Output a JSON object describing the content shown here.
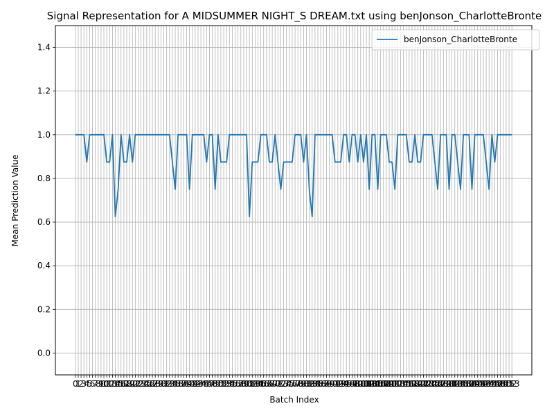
{
  "chart_data": {
    "type": "line",
    "title": "Signal Representation for A MIDSUMMER NIGHT_S DREAM.txt using benJonson_CharlotteBronte",
    "xlabel": "Batch Index",
    "ylabel": "Mean Prediction Value",
    "xlim": [
      -7,
      160
    ],
    "ylim": [
      -0.1,
      1.5
    ],
    "yticks": [
      0.0,
      0.2,
      0.4,
      0.6,
      0.8,
      1.0,
      1.2,
      1.4
    ],
    "ytick_labels": [
      "0.0",
      "0.2",
      "0.4",
      "0.6",
      "0.8",
      "1.0",
      "1.2",
      "1.4"
    ],
    "grid": true,
    "legend_position": "top-right",
    "line_color": "#1f77b4",
    "series": [
      {
        "name": "benJonson_CharlotteBronte",
        "values": [
          1.0,
          1.0,
          1.0,
          1.0,
          0.875,
          1.0,
          1.0,
          1.0,
          1.0,
          1.0,
          1.0,
          0.875,
          0.875,
          1.0,
          0.625,
          0.75,
          1.0,
          0.875,
          0.875,
          1.0,
          0.875,
          1.0,
          1.0,
          1.0,
          1.0,
          1.0,
          1.0,
          1.0,
          1.0,
          1.0,
          1.0,
          1.0,
          1.0,
          1.0,
          0.875,
          0.75,
          1.0,
          1.0,
          1.0,
          1.0,
          0.75,
          1.0,
          1.0,
          1.0,
          1.0,
          1.0,
          0.875,
          1.0,
          1.0,
          0.75,
          1.0,
          0.875,
          0.875,
          0.875,
          1.0,
          1.0,
          1.0,
          1.0,
          1.0,
          1.0,
          1.0,
          0.625,
          0.875,
          0.875,
          0.875,
          1.0,
          1.0,
          1.0,
          0.875,
          0.875,
          1.0,
          0.875,
          0.75,
          0.875,
          0.875,
          0.875,
          0.875,
          1.0,
          1.0,
          1.0,
          0.875,
          1.0,
          0.75,
          0.625,
          1.0,
          1.0,
          1.0,
          1.0,
          1.0,
          1.0,
          1.0,
          0.875,
          0.875,
          0.875,
          1.0,
          1.0,
          0.875,
          1.0,
          1.0,
          0.875,
          1.0,
          0.875,
          1.0,
          0.75,
          1.0,
          1.0,
          0.75,
          1.0,
          1.0,
          1.0,
          0.875,
          0.875,
          0.75,
          1.0,
          1.0,
          1.0,
          1.0,
          0.875,
          0.875,
          1.0,
          0.875,
          0.875,
          1.0,
          1.0,
          1.0,
          1.0,
          0.875,
          0.75,
          1.0,
          1.0,
          1.0,
          0.75,
          1.0,
          1.0,
          0.875,
          0.75,
          1.0,
          1.0,
          1.0,
          0.75,
          1.0,
          1.0,
          1.0,
          1.0,
          0.875,
          0.75,
          1.0,
          0.875,
          1.0,
          1.0,
          1.0,
          1.0,
          1.0,
          1.0
        ]
      }
    ]
  }
}
